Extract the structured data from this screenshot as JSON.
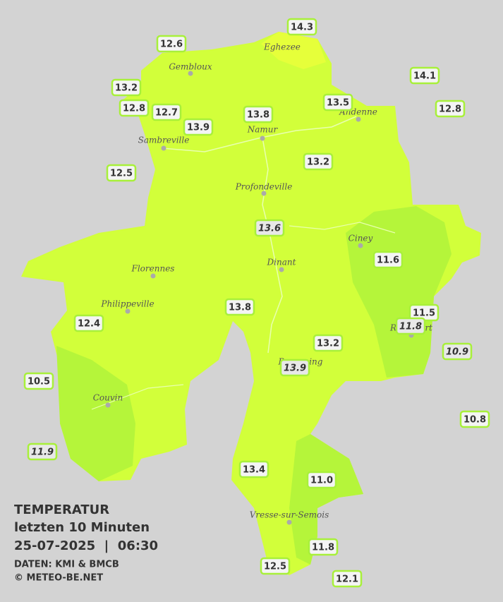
{
  "title": {
    "lines": [
      "TEMPERATUR",
      "letzten 10 Minuten",
      "25-07-2025  |  06:30"
    ],
    "source": "DATEN: KMI & BMCB",
    "copyright": "© METEO-BE.NET"
  },
  "cities": [
    "Eghezee",
    "Gembloux",
    "Andenne",
    "Namur",
    "Sambreville",
    "Profondeville",
    "Ciney",
    "Dinant",
    "Florennes",
    "Philippeville",
    "Rochefort",
    "Beauraing",
    "Couvin",
    "Vresse-sur-Semois"
  ],
  "stations": [
    {
      "value": "12.6",
      "italic": false
    },
    {
      "value": "14.3",
      "italic": false
    },
    {
      "value": "14.1",
      "italic": false
    },
    {
      "value": "13.2",
      "italic": false
    },
    {
      "value": "12.8",
      "italic": false
    },
    {
      "value": "12.7",
      "italic": false
    },
    {
      "value": "13.9",
      "italic": false
    },
    {
      "value": "13.8",
      "italic": false
    },
    {
      "value": "13.5",
      "italic": false
    },
    {
      "value": "12.8",
      "italic": false
    },
    {
      "value": "12.5",
      "italic": false
    },
    {
      "value": "13.2",
      "italic": false
    },
    {
      "value": "13.6",
      "italic": true
    },
    {
      "value": "11.6",
      "italic": false
    },
    {
      "value": "11.5",
      "italic": false
    },
    {
      "value": "11.8",
      "italic": true
    },
    {
      "value": "10.9",
      "italic": true
    },
    {
      "value": "12.4",
      "italic": false
    },
    {
      "value": "13.8",
      "italic": false
    },
    {
      "value": "13.2",
      "italic": false
    },
    {
      "value": "13.9",
      "italic": true
    },
    {
      "value": "10.5",
      "italic": false
    },
    {
      "value": "10.8",
      "italic": false
    },
    {
      "value": "11.9",
      "italic": true
    },
    {
      "value": "13.4",
      "italic": false
    },
    {
      "value": "11.0",
      "italic": false
    },
    {
      "value": "11.8",
      "italic": false
    },
    {
      "value": "12.5",
      "italic": false
    },
    {
      "value": "12.1",
      "italic": false
    }
  ]
}
